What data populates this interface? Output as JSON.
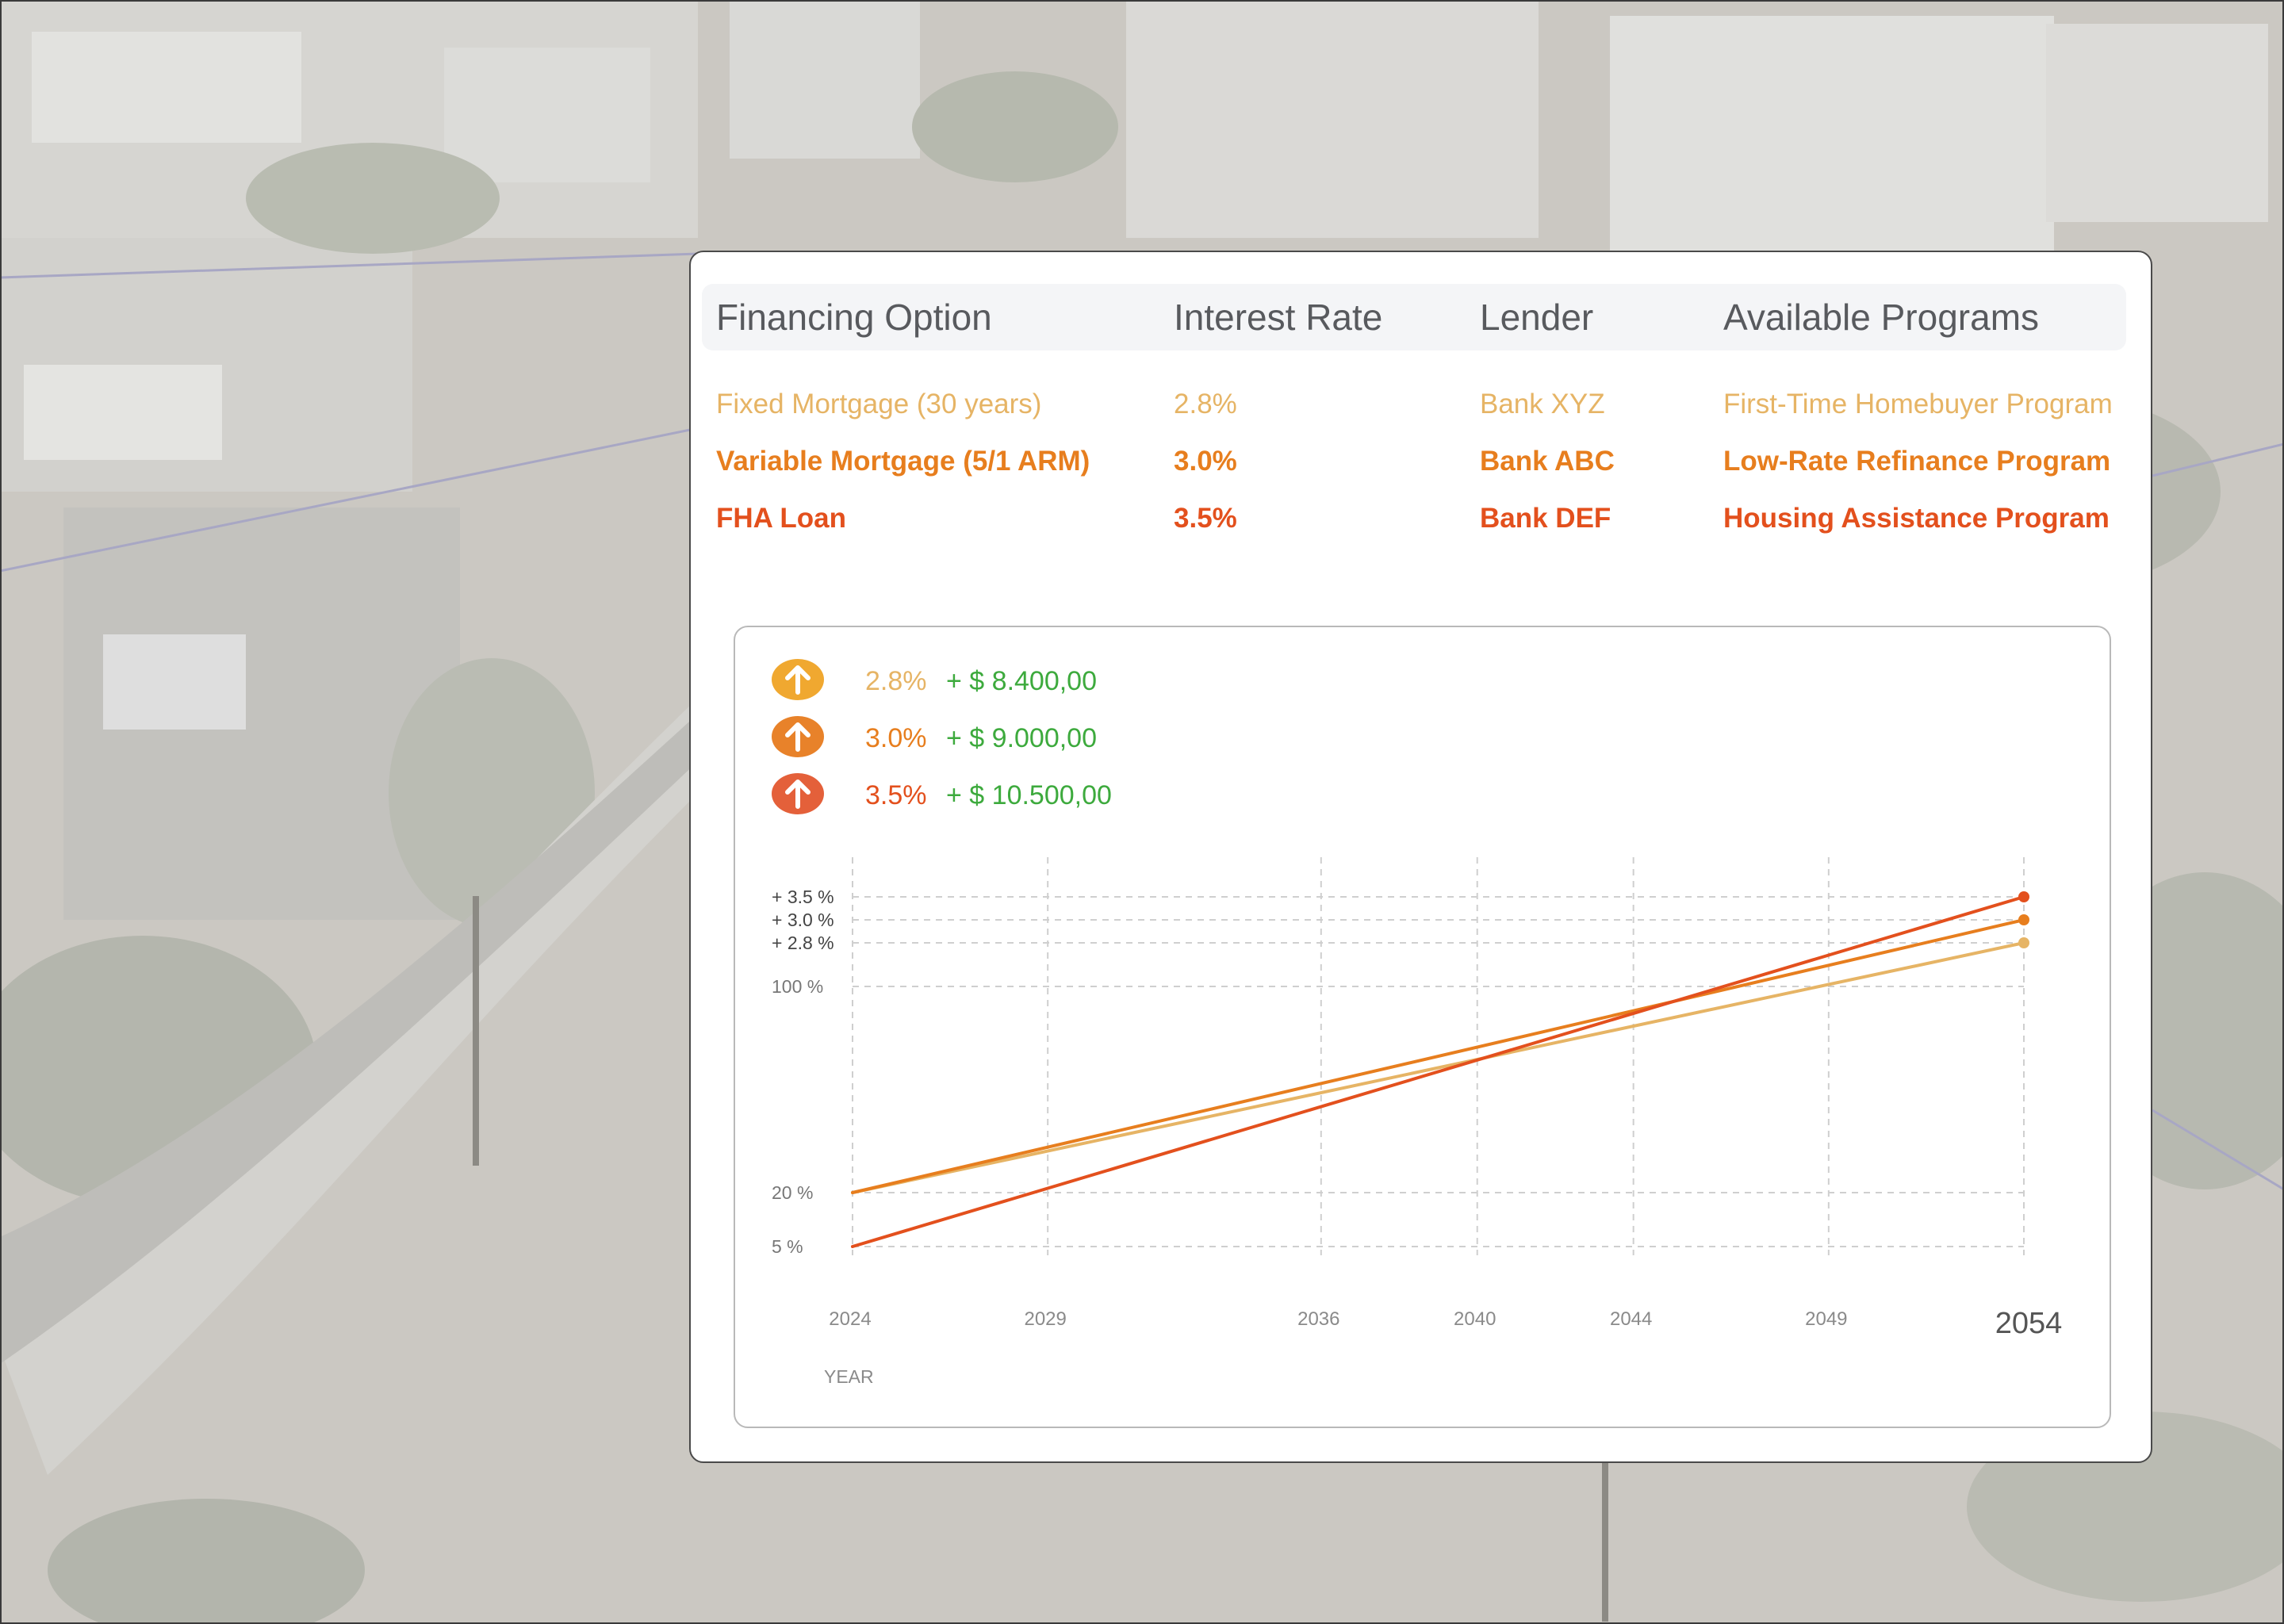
{
  "table": {
    "headers": [
      "Financing Option",
      "Interest Rate",
      "Lender",
      "Available Programs"
    ],
    "rows": [
      {
        "option": "Fixed Mortgage (30 years)",
        "rate": "2.8%",
        "lender": "Bank XYZ",
        "program": "First-Time Homebuyer Program"
      },
      {
        "option": "Variable Mortgage (5/1 ARM)",
        "rate": "3.0%",
        "lender": "Bank ABC",
        "program": "Low-Rate Refinance Program"
      },
      {
        "option": "FHA Loan",
        "rate": "3.5%",
        "lender": "Bank DEF",
        "program": "Housing Assistance Program"
      }
    ]
  },
  "legend": [
    {
      "rate": "2.8%",
      "gain": "+ $ 8.400,00",
      "color": "#f0a830",
      "badge_icon": "arrow-up-icon"
    },
    {
      "rate": "3.0%",
      "gain": "+ $ 9.000,00",
      "color": "#e8822a",
      "badge_icon": "arrow-up-icon"
    },
    {
      "rate": "3.5%",
      "gain": "+ $ 10.500,00",
      "color": "#e4603a",
      "badge_icon": "arrow-up-icon"
    }
  ],
  "colors": {
    "rate_28": "#e6b465",
    "rate_30": "#e77e1e",
    "rate_35": "#e3501d",
    "gain_green": "#3daa3d",
    "grid": "#cfcfcf"
  },
  "chart_data": {
    "type": "line",
    "xlabel": "YEAR",
    "x_ticks": [
      "2024",
      "2029",
      "2036",
      "2040",
      "2044",
      "2049",
      "2054"
    ],
    "y_ticks": [
      "5 %",
      "20 %",
      "100 %",
      "+ 2.8 %",
      "+ 3.0 %",
      "+ 3.5 %"
    ],
    "series": [
      {
        "name": "2.8%",
        "x": [
          2024,
          2054
        ],
        "y": [
          "20 %",
          "+ 2.8 %"
        ],
        "color": "#e6b465"
      },
      {
        "name": "3.0%",
        "x": [
          2024,
          2054
        ],
        "y": [
          "20 %",
          "+ 3.0 %"
        ],
        "color": "#e77e1e"
      },
      {
        "name": "3.5%",
        "x": [
          2024,
          2054
        ],
        "y": [
          "5 %",
          "+ 3.5 %"
        ],
        "color": "#e3501d"
      }
    ],
    "grid": true
  }
}
